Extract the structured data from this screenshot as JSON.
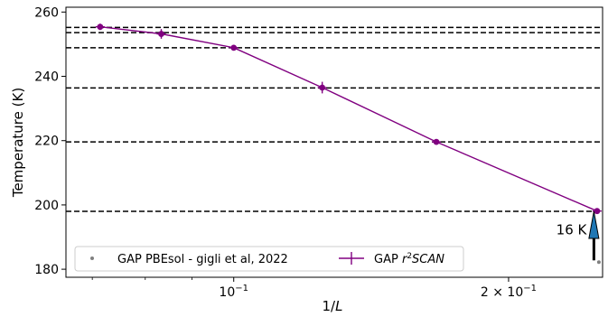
{
  "chart_data": {
    "type": "line",
    "xlabel": "1/L",
    "ylabel": "Temperature (K)",
    "xscale": "log",
    "xlim": [
      0.0655,
      0.2535
    ],
    "ylim": [
      177.5,
      261.5
    ],
    "y_ticks": [
      180,
      200,
      220,
      240,
      260
    ],
    "x_ticks": [
      {
        "value": 0.1,
        "base": "10",
        "exp": "−1",
        "prefix": ""
      },
      {
        "value": 0.2,
        "base": "10",
        "exp": "−1",
        "prefix": "2 × "
      }
    ],
    "hlines": [
      255.2,
      253.6,
      248.9,
      236.4,
      219.6,
      198.0
    ],
    "series": [
      {
        "name_prefix": "GAP ",
        "name_math": "r",
        "name_sup": "2",
        "name_math2": "SCAN",
        "color": "#800080",
        "x": [
          0.0714,
          0.0833,
          0.1,
          0.125,
          0.1667,
          0.25
        ],
        "y": [
          255.4,
          253.2,
          248.9,
          236.5,
          219.6,
          198.1
        ],
        "yerr": [
          1.0,
          1.5,
          0.6,
          1.8,
          0.5,
          0.6
        ]
      },
      {
        "name": "GAP PBEsol - gigli et al, 2022",
        "color": "#808080",
        "x": [
          0.25
        ],
        "y": [
          182.2
        ]
      }
    ],
    "annotation": {
      "text": "16 K",
      "x": 0.248,
      "y_from": 182.2,
      "y_to": 198.0,
      "arrow_color": "#1f77b4"
    },
    "legend_position": "lower-left",
    "grid": false
  }
}
